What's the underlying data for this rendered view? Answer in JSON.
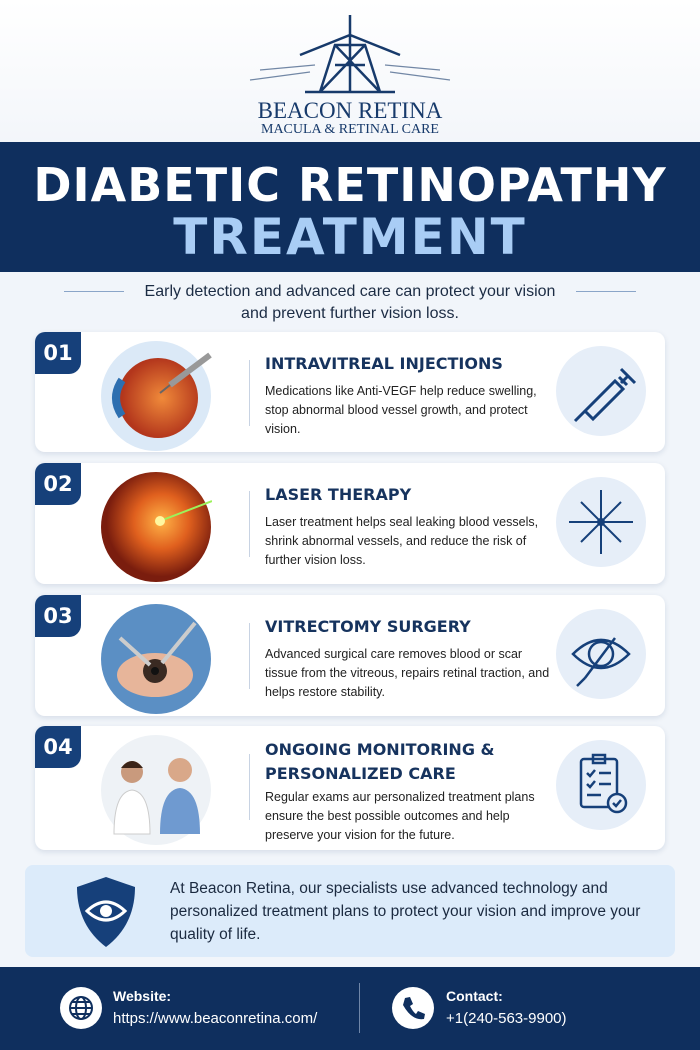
{
  "header": {
    "brand": "BEACON RETINA",
    "tagline": "MACULA & RETINAL CARE"
  },
  "title": {
    "line1": "DIABETIC RETINOPATHY",
    "line2": "TREATMENT"
  },
  "intro": "Early detection and advanced care can protect your vision and prevent further vision loss.",
  "treatments": [
    {
      "number": "01",
      "title": "INTRAVITREAL INJECTIONS",
      "description": "Medications like Anti-VEGF help reduce swelling, stop abnormal blood vessel growth, and protect vision."
    },
    {
      "number": "02",
      "title": "LASER THERAPY",
      "description": "Laser treatment helps seal leaking blood vessels, shrink abnormal vessels, and reduce the risk of further vision loss."
    },
    {
      "number": "03",
      "title": "VITRECTOMY SURGERY",
      "description": "Advanced surgical care removes blood or scar tissue from the vitreous, repairs retinal traction, and helps restore stability."
    },
    {
      "number": "04",
      "title": "ONGOING MONITORING & PERSONALIZED CARE",
      "description": "Regular exams aur personalized treatment plans ensure the best possible outcomes and help preserve your vision for the future."
    }
  ],
  "closing": "At Beacon Retina, our specialists use advanced technology and personalized treatment plans to protect your vision and improve your quality of life.",
  "footer": {
    "website_label": "Website:",
    "website": "https://www.beaconretina.com/",
    "contact_label": "Contact:",
    "phone": "+1(240-563-9900)"
  }
}
